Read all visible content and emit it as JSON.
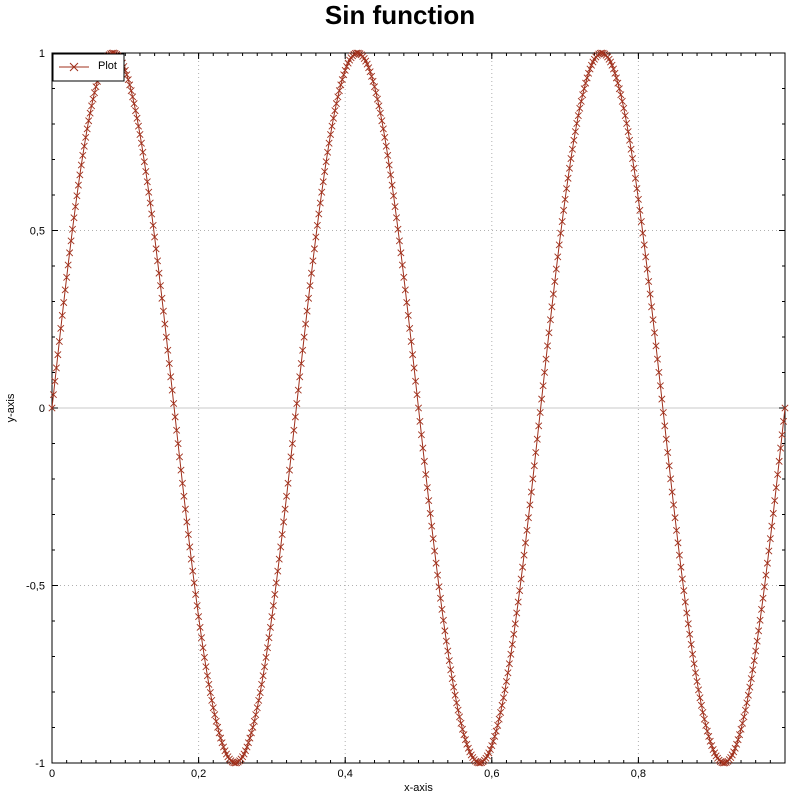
{
  "chart_data": {
    "type": "line",
    "title": "Sin function",
    "xlabel": "x-axis",
    "ylabel": "y-axis",
    "xlim": [
      0,
      1
    ],
    "ylim": [
      -1,
      1
    ],
    "x_ticks": [
      {
        "value": 0,
        "label": "0"
      },
      {
        "value": 0.2,
        "label": "0,2"
      },
      {
        "value": 0.4,
        "label": "0,4"
      },
      {
        "value": 0.6,
        "label": "0,6"
      },
      {
        "value": 0.8,
        "label": "0,8"
      }
    ],
    "y_ticks": [
      {
        "value": -1,
        "label": "-1"
      },
      {
        "value": -0.5,
        "label": "-0,5"
      },
      {
        "value": 0,
        "label": "0"
      },
      {
        "value": 0.5,
        "label": "0,5"
      },
      {
        "value": 1,
        "label": "1"
      }
    ],
    "grid": true,
    "legend_position": "top-left",
    "series": [
      {
        "name": "Plot",
        "function": "y = sin(2π·3·x)",
        "frequency": 3,
        "amplitude": 1,
        "x_start": 0,
        "x_end": 1,
        "x_step": 0.002,
        "marker": "x",
        "color": "#a0301c"
      }
    ]
  }
}
